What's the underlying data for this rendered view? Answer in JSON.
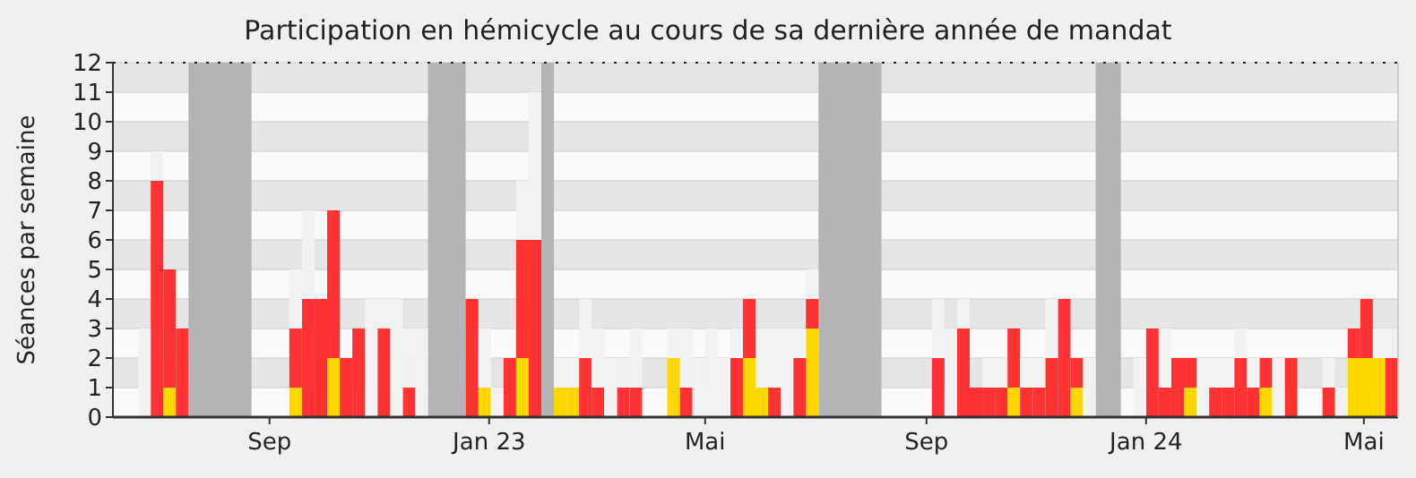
{
  "chart_data": {
    "type": "bar",
    "title": "Participation en hémicycle au cours de sa dernière année de mandat",
    "ylabel": "Séances par semaine",
    "x": [
      "2022-06-20",
      "2022-06-27",
      "2022-07-04",
      "2022-07-11",
      "2022-07-18",
      "2022-07-25",
      "2022-08-01",
      "2022-08-08",
      "2022-08-15",
      "2022-08-22",
      "2022-08-29",
      "2022-09-05",
      "2022-09-12",
      "2022-09-19",
      "2022-09-26",
      "2022-10-03",
      "2022-10-10",
      "2022-10-17",
      "2022-10-24",
      "2022-10-31",
      "2022-11-07",
      "2022-11-14",
      "2022-11-21",
      "2022-11-28",
      "2022-12-05",
      "2022-12-12",
      "2022-12-19",
      "2022-12-26",
      "2023-01-02",
      "2023-01-09",
      "2023-01-16",
      "2023-01-23",
      "2023-01-30",
      "2023-02-06",
      "2023-02-13",
      "2023-02-20",
      "2023-02-27",
      "2023-03-06",
      "2023-03-13",
      "2023-03-20",
      "2023-03-27",
      "2023-04-03",
      "2023-04-10",
      "2023-04-17",
      "2023-04-24",
      "2023-05-01",
      "2023-05-08",
      "2023-05-15",
      "2023-05-22",
      "2023-05-29",
      "2023-06-05",
      "2023-06-12",
      "2023-06-19",
      "2023-06-26",
      "2023-07-03",
      "2023-07-10",
      "2023-07-17",
      "2023-07-24",
      "2023-07-31",
      "2023-08-07",
      "2023-08-14",
      "2023-08-21",
      "2023-08-28",
      "2023-09-04",
      "2023-09-11",
      "2023-09-18",
      "2023-09-25",
      "2023-10-02",
      "2023-10-09",
      "2023-10-16",
      "2023-10-23",
      "2023-10-30",
      "2023-11-06",
      "2023-11-13",
      "2023-11-20",
      "2023-11-27",
      "2023-12-04",
      "2023-12-11",
      "2023-12-18",
      "2023-12-25",
      "2024-01-01",
      "2024-01-08",
      "2024-01-15",
      "2024-01-22",
      "2024-01-29",
      "2024-02-05",
      "2024-02-12",
      "2024-02-19",
      "2024-02-26",
      "2024-03-04",
      "2024-03-11",
      "2024-03-18",
      "2024-03-25",
      "2024-04-01",
      "2024-04-08",
      "2024-04-15",
      "2024-04-22",
      "2024-04-29",
      "2024-05-06",
      "2024-05-13"
    ],
    "stacked": true,
    "series": [
      {
        "color": "#ffd700",
        "values": [
          0,
          0,
          1,
          0,
          null,
          null,
          null,
          null,
          null,
          null,
          null,
          null,
          1,
          0,
          0,
          2,
          0,
          0,
          0,
          0,
          0,
          0,
          0,
          null,
          null,
          null,
          0,
          1,
          0,
          0,
          2,
          0,
          null,
          1,
          1,
          0,
          0,
          0,
          0,
          0,
          null,
          null,
          2,
          0,
          0,
          0,
          0,
          0,
          2,
          1,
          0,
          0,
          0,
          3,
          null,
          null,
          null,
          null,
          null,
          null,
          null,
          null,
          null,
          0,
          0,
          0,
          0,
          0,
          0,
          1,
          0,
          0,
          0,
          0,
          1,
          0,
          null,
          null,
          null,
          0,
          0,
          0,
          0,
          1,
          0,
          0,
          0,
          0,
          0,
          1,
          0,
          0,
          null,
          null,
          0,
          0,
          2,
          2,
          2,
          0
        ]
      },
      {
        "color": "#ff3333",
        "values": [
          0,
          8,
          4,
          3,
          null,
          null,
          null,
          null,
          null,
          null,
          null,
          null,
          2,
          4,
          4,
          5,
          2,
          3,
          0,
          3,
          0,
          1,
          0,
          null,
          null,
          null,
          4,
          0,
          0,
          2,
          4,
          6,
          null,
          0,
          0,
          2,
          1,
          0,
          1,
          1,
          null,
          null,
          0,
          1,
          0,
          0,
          0,
          2,
          2,
          0,
          1,
          0,
          2,
          1,
          null,
          null,
          null,
          null,
          null,
          null,
          null,
          null,
          null,
          2,
          0,
          3,
          1,
          1,
          1,
          2,
          1,
          1,
          2,
          4,
          1,
          0,
          null,
          null,
          null,
          0,
          3,
          1,
          2,
          1,
          0,
          1,
          1,
          2,
          1,
          1,
          0,
          2,
          null,
          null,
          1,
          0,
          1,
          2,
          0,
          2
        ]
      },
      {
        "color": "#f2f2f2",
        "values": [
          3,
          1,
          0,
          0,
          null,
          null,
          null,
          null,
          null,
          null,
          null,
          null,
          2,
          3,
          0,
          0,
          0,
          0,
          4,
          1,
          4,
          2,
          3,
          null,
          null,
          null,
          0,
          2,
          1,
          0,
          2,
          5,
          null,
          1,
          1,
          2,
          2,
          2,
          1,
          2,
          null,
          null,
          1,
          2,
          2,
          3,
          2,
          1,
          0,
          2,
          2,
          3,
          1,
          1,
          null,
          null,
          null,
          null,
          null,
          null,
          null,
          null,
          null,
          2,
          3,
          1,
          0,
          1,
          1,
          0,
          1,
          1,
          2,
          0,
          0,
          2,
          null,
          null,
          null,
          2,
          0,
          2,
          0,
          0,
          2,
          1,
          1,
          1,
          1,
          0,
          2,
          0,
          null,
          null,
          1,
          1,
          0,
          0,
          1,
          1
        ]
      }
    ],
    "bands": [
      {
        "axis": "x",
        "from": "2022-07-18",
        "to": "2022-08-22",
        "color": "#b4b4b4"
      },
      {
        "axis": "x",
        "from": "2022-11-28",
        "to": "2022-12-19",
        "color": "#b4b4b4"
      },
      {
        "axis": "x",
        "from": "2023-01-30",
        "to": "2023-02-06",
        "color": "#b4b4b4"
      },
      {
        "axis": "x",
        "from": "2023-07-03",
        "to": "2023-08-07",
        "color": "#b4b4b4"
      },
      {
        "axis": "x",
        "from": "2023-12-04",
        "to": "2023-12-18",
        "color": "#b4b4b4"
      }
    ],
    "xlim": [
      "2022-06-06",
      "2024-05-20"
    ],
    "xticks": [
      {
        "value": "2022-09-01",
        "label": "Sep"
      },
      {
        "value": "2023-01-01",
        "label": "Jan 23"
      },
      {
        "value": "2023-05-01",
        "label": "Mai"
      },
      {
        "value": "2023-09-01",
        "label": "Sep"
      },
      {
        "value": "2024-01-01",
        "label": "Jan 24"
      },
      {
        "value": "2024-05-01",
        "label": "Mai"
      }
    ],
    "ylim": [
      0,
      12
    ],
    "yticks": [
      0,
      1,
      2,
      3,
      4,
      5,
      6,
      7,
      8,
      9,
      10,
      11,
      12
    ],
    "grid": true
  }
}
